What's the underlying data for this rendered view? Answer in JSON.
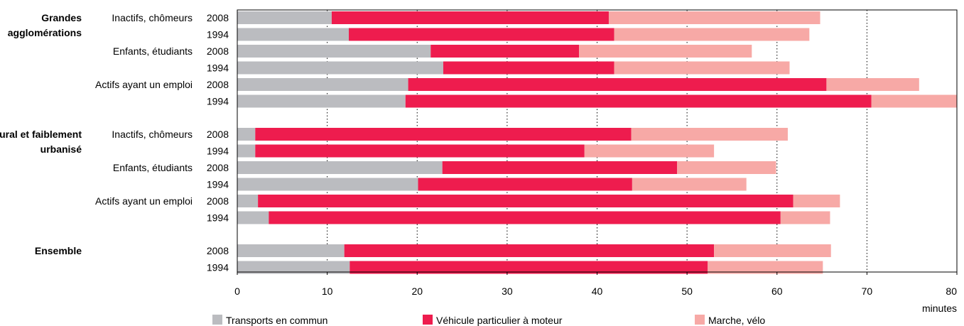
{
  "chart_data": {
    "type": "bar",
    "orientation": "horizontal",
    "stacked": true,
    "x_unit": "minutes",
    "xlim": [
      0,
      80
    ],
    "x_ticks": [
      "0",
      "10",
      "20",
      "30",
      "40",
      "50",
      "60",
      "70",
      "80"
    ],
    "grid": "vertical dotted",
    "legend_position": "bottom",
    "series": [
      {
        "name": "Transports en commun",
        "color": "#bbbcc0"
      },
      {
        "name": "Véhicule particulier à moteur",
        "color": "#ee1c4e"
      },
      {
        "name": "Marche, vélo",
        "color": "#f7a9a6"
      }
    ],
    "groups": [
      {
        "label": [
          "Grandes",
          "agglomérations"
        ],
        "categories": [
          {
            "label": "Inactifs, chômeurs",
            "rows": [
              {
                "year": "2008",
                "values": [
                  10.5,
                  30.8,
                  23.5
                ]
              },
              {
                "year": "1994",
                "values": [
                  12.4,
                  29.5,
                  21.7
                ]
              }
            ]
          },
          {
            "label": "Enfants, étudiants",
            "rows": [
              {
                "year": "2008",
                "values": [
                  21.5,
                  16.5,
                  19.2
                ]
              },
              {
                "year": "1994",
                "values": [
                  22.9,
                  19.0,
                  19.5
                ]
              }
            ]
          },
          {
            "label": "Actifs ayant un emploi",
            "rows": [
              {
                "year": "2008",
                "values": [
                  19.0,
                  46.5,
                  10.3
                ]
              },
              {
                "year": "1994",
                "values": [
                  18.7,
                  51.8,
                  9.5
                ]
              }
            ]
          }
        ]
      },
      {
        "label": [
          "Rural et faiblement",
          "urbanisé"
        ],
        "categories": [
          {
            "label": "Inactifs, chômeurs",
            "rows": [
              {
                "year": "2008",
                "values": [
                  2.0,
                  41.8,
                  17.4
                ]
              },
              {
                "year": "1994",
                "values": [
                  2.0,
                  36.6,
                  14.4
                ]
              }
            ]
          },
          {
            "label": "Enfants, étudiants",
            "rows": [
              {
                "year": "2008",
                "values": [
                  22.8,
                  26.1,
                  11.0
                ]
              },
              {
                "year": "1994",
                "values": [
                  20.1,
                  23.8,
                  12.7
                ]
              }
            ]
          },
          {
            "label": "Actifs ayant un emploi",
            "rows": [
              {
                "year": "2008",
                "values": [
                  2.3,
                  59.5,
                  5.2
                ]
              },
              {
                "year": "1994",
                "values": [
                  3.5,
                  56.9,
                  5.5
                ]
              }
            ]
          }
        ]
      },
      {
        "label": [
          "Ensemble"
        ],
        "categories": [
          {
            "label": "",
            "rows": [
              {
                "year": "2008",
                "values": [
                  11.9,
                  41.1,
                  13.0
                ]
              },
              {
                "year": "1994",
                "values": [
                  12.5,
                  39.8,
                  12.8
                ]
              }
            ]
          }
        ]
      }
    ]
  }
}
